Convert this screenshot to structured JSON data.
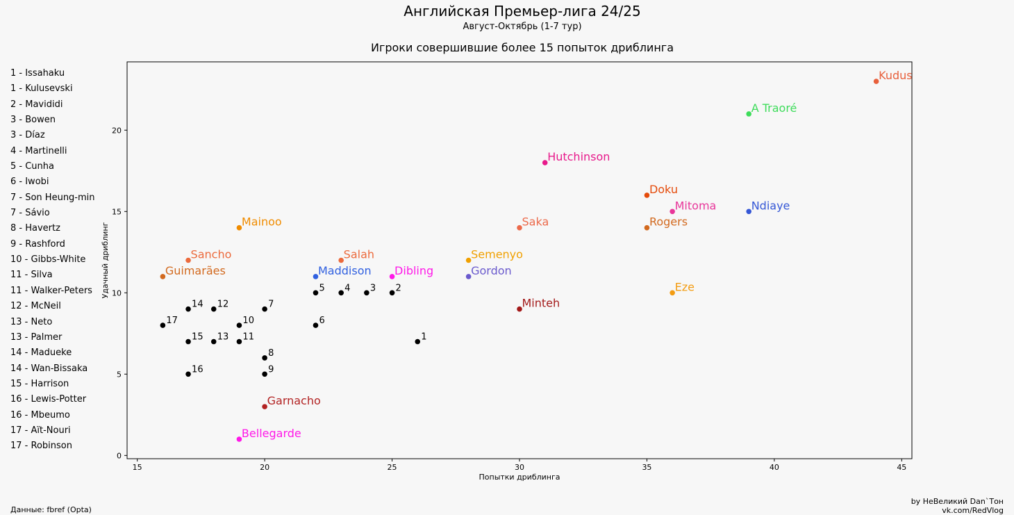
{
  "header": {
    "title": "Английская Премьер-лига 24/25",
    "subtitle": "Август-Октябрь (1-7 тур)",
    "chart_title": "Игроки совершившие более 15 попыток дриблинга"
  },
  "legend": [
    "1 - Issahaku",
    "1 - Kulusevski",
    "2 - Mavididi",
    "3 - Bowen",
    "3 - Díaz",
    "4 - Martinelli",
    "5 - Cunha",
    "6 - Iwobi",
    "7 - Son Heung-min",
    "7 - Sávio",
    "8 - Havertz",
    "9 - Rashford",
    "10 - Gibbs-White",
    "11 - Silva",
    "11 - Walker-Peters",
    "12 - McNeil",
    "13 - Neto",
    "13 - Palmer",
    "14 - Madueke",
    "14 - Wan-Bissaka",
    "15 - Harrison",
    "16 - Lewis-Potter",
    "16 - Mbeumo",
    "17 - Aït-Nouri",
    "17 - Robinson"
  ],
  "footer": {
    "source": "Данные: fbref (Opta)",
    "author": "by НеВеликий Dan`Тон",
    "link": "vk.com/RedVlog"
  },
  "chart_data": {
    "type": "scatter",
    "title": "Игроки совершившие более 15 попыток дриблинга",
    "xlabel": "Попытки дриблинга",
    "ylabel": "Удачный дриблинг",
    "xlim": [
      14.6,
      45.4
    ],
    "ylim": [
      -0.2,
      24.2
    ],
    "xticks": [
      15,
      20,
      25,
      30,
      35,
      40,
      45
    ],
    "yticks": [
      0,
      5,
      10,
      15,
      20
    ],
    "grid": false,
    "labeled_points": [
      {
        "label": "Kudus",
        "x": 44,
        "y": 23,
        "color": "#e8603c"
      },
      {
        "label": "A Traoré",
        "x": 39,
        "y": 21,
        "color": "#3ddc5a"
      },
      {
        "label": "Hutchinson",
        "x": 31,
        "y": 18,
        "color": "#e8198b"
      },
      {
        "label": "Doku",
        "x": 35,
        "y": 16,
        "color": "#e54b0b"
      },
      {
        "label": "Mitoma",
        "x": 36,
        "y": 15,
        "color": "#e8369a"
      },
      {
        "label": "Ndiaye",
        "x": 39,
        "y": 15,
        "color": "#3557d6"
      },
      {
        "label": "Mainoo",
        "x": 19,
        "y": 14,
        "color": "#f08c00"
      },
      {
        "label": "Saka",
        "x": 30,
        "y": 14,
        "color": "#ec6a4b"
      },
      {
        "label": "Rogers",
        "x": 35,
        "y": 14,
        "color": "#d2691e"
      },
      {
        "label": "Sancho",
        "x": 17,
        "y": 12,
        "color": "#ec6a3c"
      },
      {
        "label": "Salah",
        "x": 23,
        "y": 12,
        "color": "#ec6a3c"
      },
      {
        "label": "Semenyo",
        "x": 28,
        "y": 12,
        "color": "#f0a000"
      },
      {
        "label": "Guimarães",
        "x": 16,
        "y": 11,
        "color": "#d2691e"
      },
      {
        "label": "Maddison",
        "x": 22,
        "y": 11,
        "color": "#3060e0"
      },
      {
        "label": "Dibling",
        "x": 25,
        "y": 11,
        "color": "#ff19e8"
      },
      {
        "label": "Gordon",
        "x": 28,
        "y": 11,
        "color": "#6a5acd"
      },
      {
        "label": "Eze",
        "x": 36,
        "y": 10,
        "color": "#f39c12"
      },
      {
        "label": "Minteh",
        "x": 30,
        "y": 9,
        "color": "#a31a1a"
      },
      {
        "label": "Garnacho",
        "x": 20,
        "y": 3,
        "color": "#b22222"
      },
      {
        "label": "Bellegarde",
        "x": 19,
        "y": 1,
        "color": "#ff19e8"
      }
    ],
    "numbered_points": [
      {
        "label": "1",
        "x": 26,
        "y": 7
      },
      {
        "label": "2",
        "x": 25,
        "y": 10
      },
      {
        "label": "3",
        "x": 24,
        "y": 10
      },
      {
        "label": "4",
        "x": 23,
        "y": 10
      },
      {
        "label": "5",
        "x": 22,
        "y": 10
      },
      {
        "label": "6",
        "x": 22,
        "y": 8
      },
      {
        "label": "7",
        "x": 20,
        "y": 9
      },
      {
        "label": "8",
        "x": 20,
        "y": 6
      },
      {
        "label": "9",
        "x": 20,
        "y": 5
      },
      {
        "label": "10",
        "x": 19,
        "y": 8
      },
      {
        "label": "11",
        "x": 19,
        "y": 7
      },
      {
        "label": "12",
        "x": 18,
        "y": 9
      },
      {
        "label": "13",
        "x": 18,
        "y": 7
      },
      {
        "label": "14",
        "x": 17,
        "y": 9
      },
      {
        "label": "15",
        "x": 17,
        "y": 7
      },
      {
        "label": "16",
        "x": 17,
        "y": 5
      },
      {
        "label": "17",
        "x": 16,
        "y": 8
      }
    ],
    "numbered_color": "#000000"
  }
}
